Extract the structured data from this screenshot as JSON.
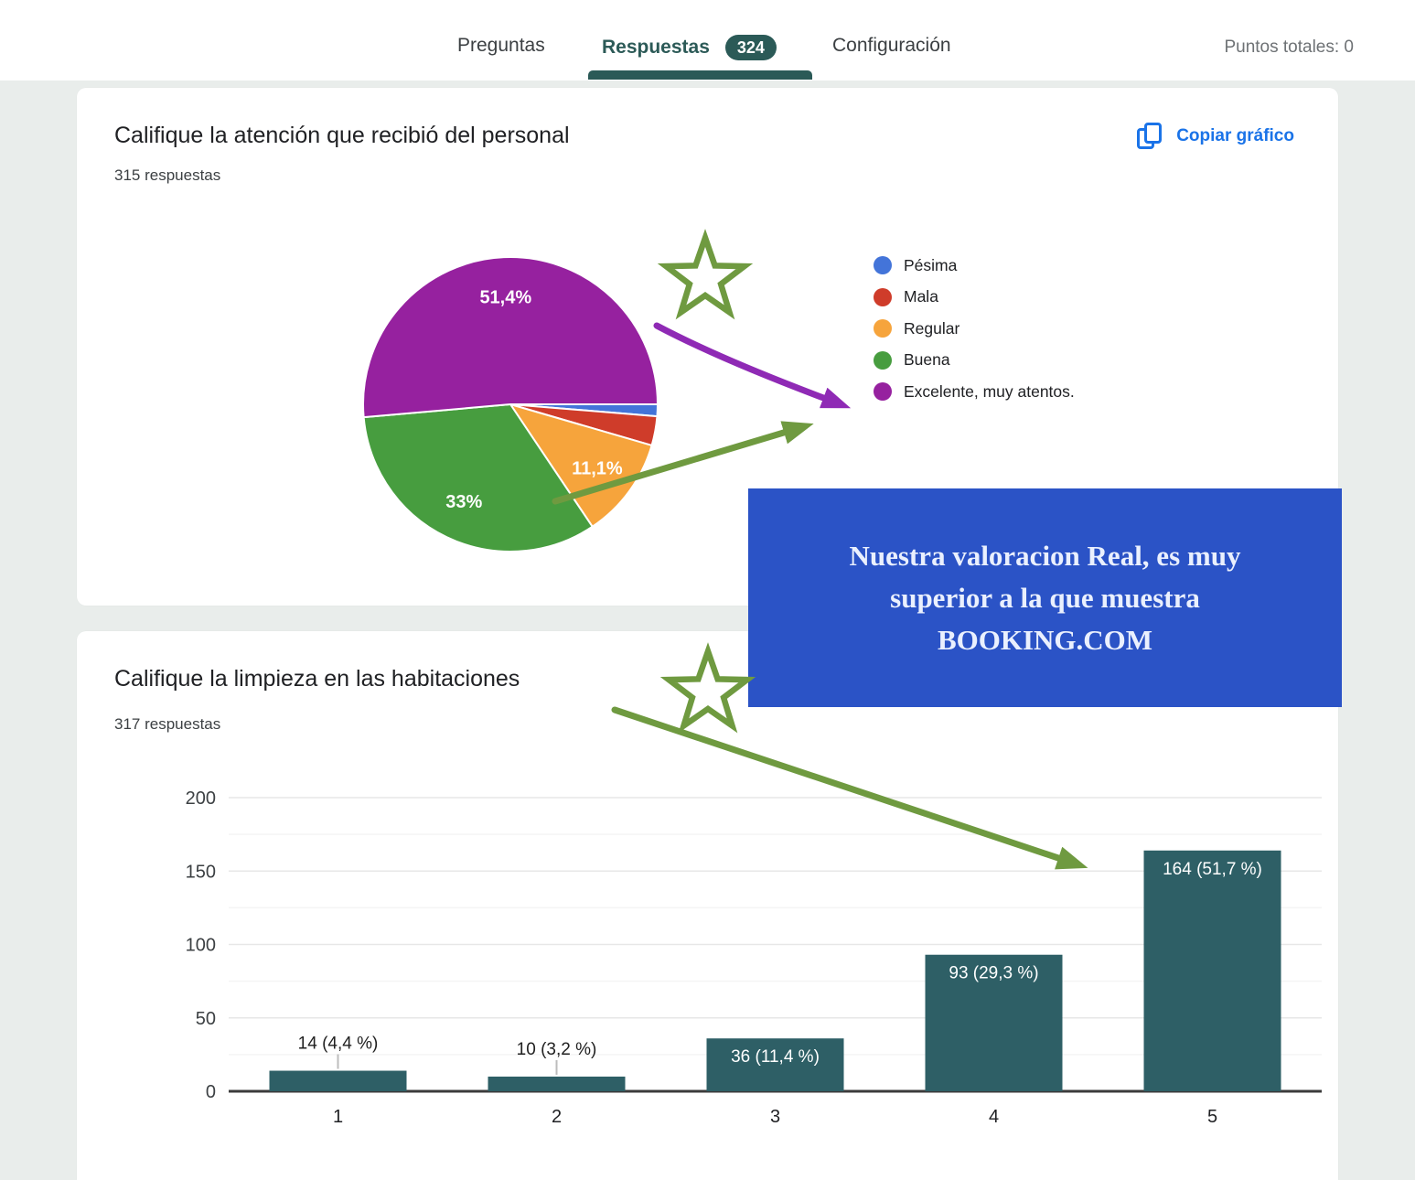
{
  "nav": {
    "tabs": [
      {
        "label": "Preguntas",
        "active": false
      },
      {
        "label": "Respuestas",
        "active": true,
        "badge": "324"
      },
      {
        "label": "Configuración",
        "active": false
      }
    ],
    "points_label": "Puntos totales: 0",
    "active_color": "#2b5a57"
  },
  "cards": [
    {
      "title": "Califique la atención que recibió del personal",
      "responses": "315 respuestas",
      "copy_label": "Copiar gráfico"
    },
    {
      "title": "Califique la limpieza en las habitaciones",
      "responses": "317 respuestas"
    }
  ],
  "annotation_box": {
    "lines": [
      "Nuestra valoracion Real, es muy",
      "superior a la que muestra",
      "BOOKING.COM"
    ],
    "bg_color": "#2b53c6",
    "text_color": "#eaf0fe"
  },
  "annotation_colors": {
    "star_arrow_green": "#6f9a40",
    "arrow_purple": "#8f2ab5"
  },
  "accent_blue": "#1a73e8",
  "chart_data": [
    {
      "type": "pie",
      "question": "Califique la atención que recibió del personal",
      "legend_position": "right",
      "slices": [
        {
          "label": "Pésima",
          "pct": 1.3,
          "color": "#4374d9",
          "data_label": null
        },
        {
          "label": "Mala",
          "pct": 3.2,
          "color": "#cf3c2a",
          "data_label": null
        },
        {
          "label": "Regular",
          "pct": 11.1,
          "color": "#f6a43c",
          "data_label": "11,1%"
        },
        {
          "label": "Buena",
          "pct": 33.0,
          "color": "#479d3f",
          "data_label": "33%"
        },
        {
          "label": "Excelente, muy atentos.",
          "pct": 51.4,
          "color": "#96219f",
          "data_label": "51,4%"
        }
      ]
    },
    {
      "type": "bar",
      "question": "Califique la limpieza en las habitaciones",
      "categories": [
        "1",
        "2",
        "3",
        "4",
        "5"
      ],
      "values": [
        14,
        10,
        36,
        93,
        164
      ],
      "bar_labels": [
        "14 (4,4 %)",
        "10 (3,2 %)",
        "36 (11,4 %)",
        "93 (29,3 %)",
        "164 (51,7 %)"
      ],
      "ylim": [
        0,
        200
      ],
      "yticks": [
        0,
        50,
        100,
        150,
        200
      ],
      "grid": true,
      "bar_color": "#2e5f66"
    }
  ]
}
